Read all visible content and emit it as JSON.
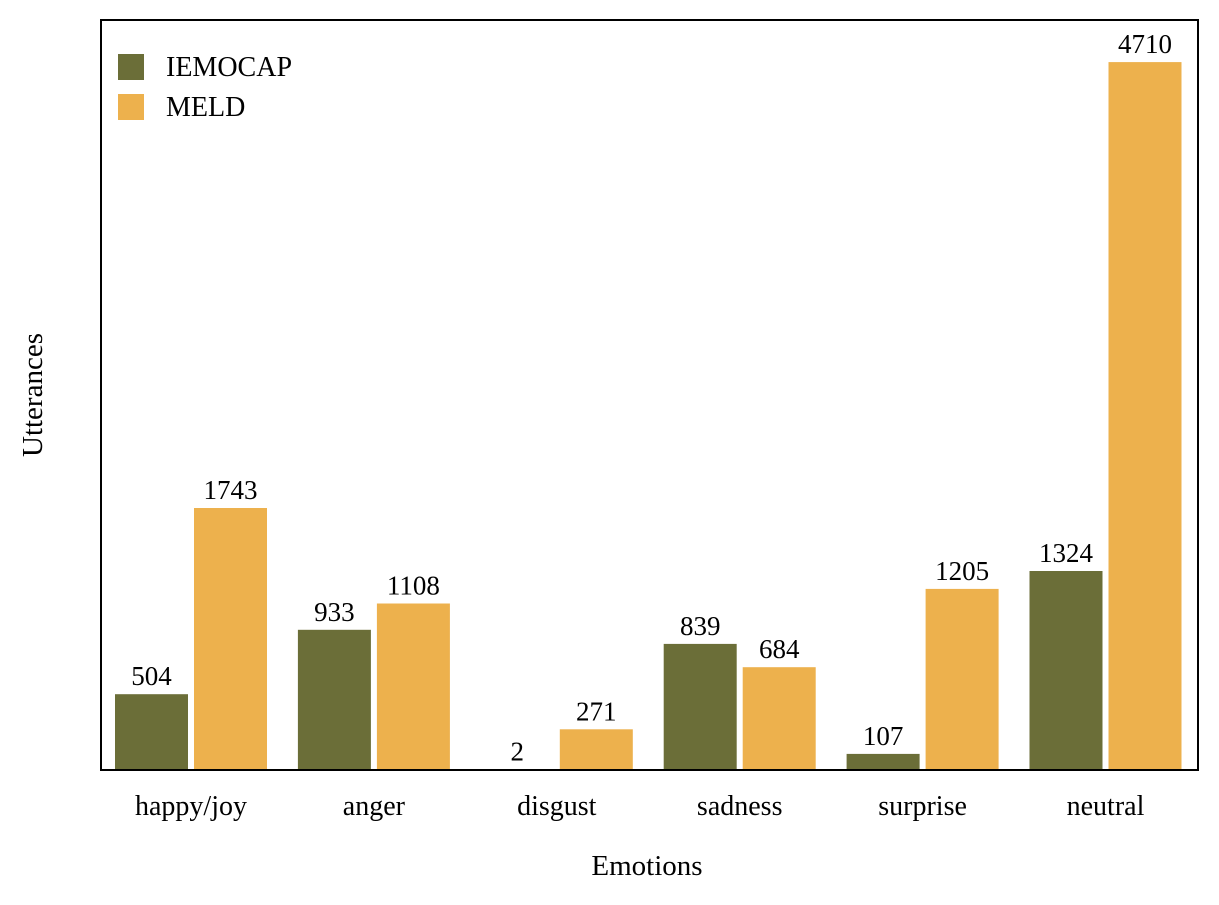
{
  "chart_data": {
    "type": "bar",
    "title": "",
    "xlabel": "Emotions",
    "ylabel": "Utterances",
    "categories": [
      "happy/joy",
      "anger",
      "disgust",
      "sadness",
      "surprise",
      "neutral"
    ],
    "series": [
      {
        "name": "IEMOCAP",
        "color": "#6b6e38",
        "values": [
          504,
          933,
          2,
          839,
          107,
          1324
        ]
      },
      {
        "name": "MELD",
        "color": "#edb14d",
        "values": [
          1743,
          1108,
          271,
          684,
          1205,
          4710
        ]
      }
    ],
    "ylim": [
      0,
      4990
    ],
    "y_ticks_shown": false,
    "grid": false,
    "legend_position": "top-left",
    "data_labels": true
  }
}
